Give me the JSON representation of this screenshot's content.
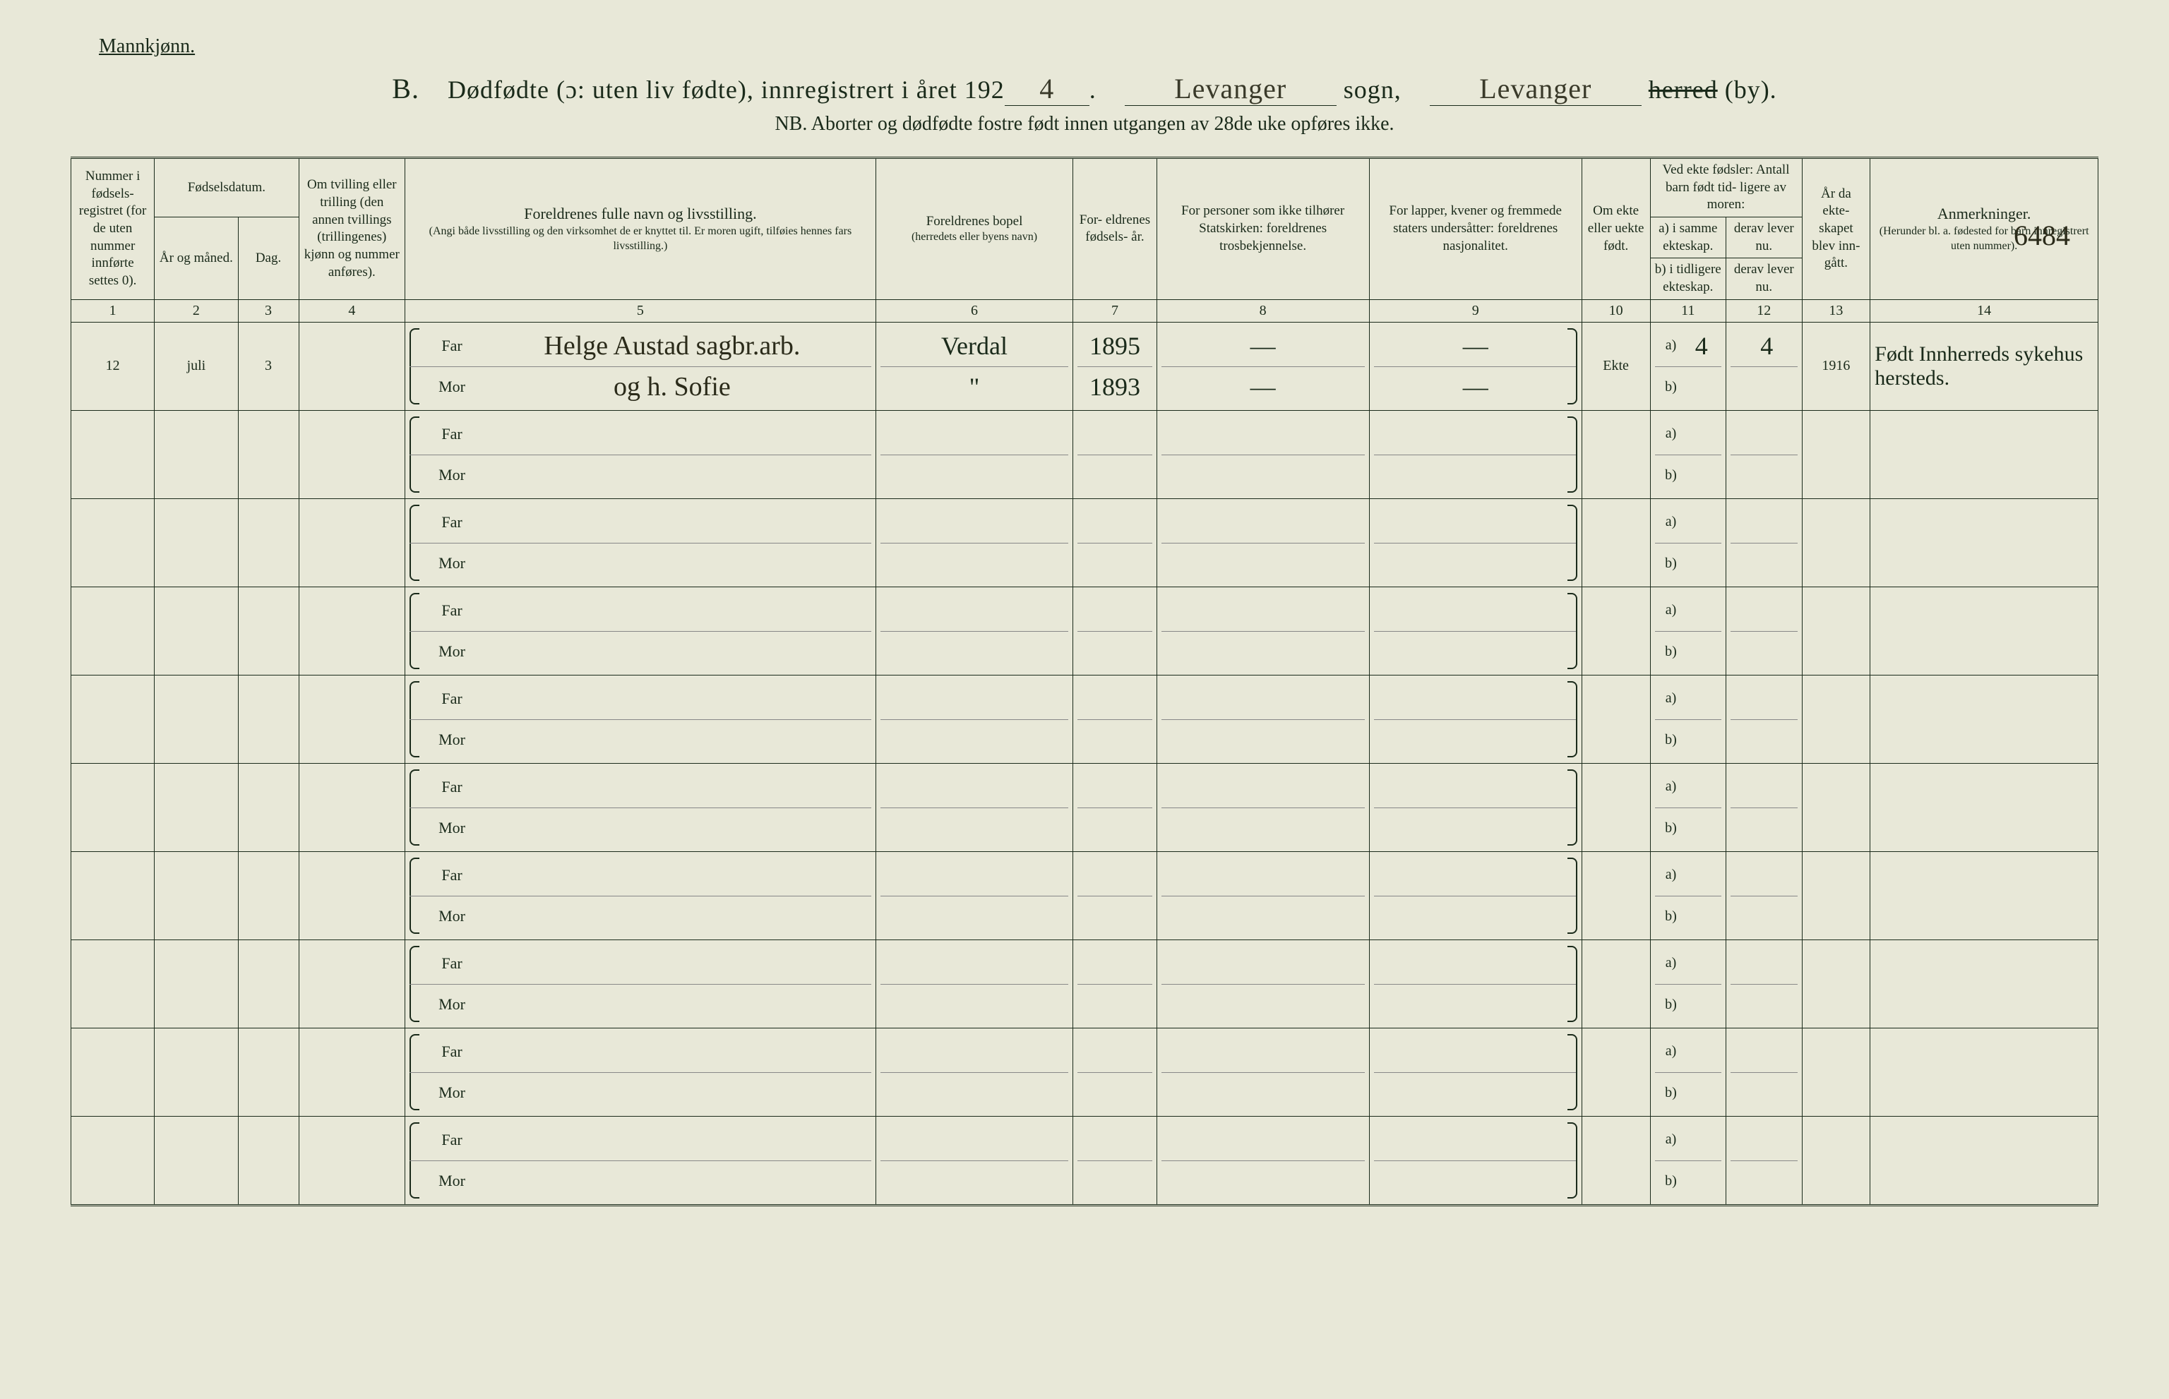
{
  "header": {
    "gender_label": "Mannkjønn.",
    "section_letter": "B.",
    "title_part1": "Dødfødte (ɔ: uten liv fødte), innregistrert i året 192",
    "year_digit": "4",
    "sogn_value": "Levanger",
    "sogn_label": "sogn,",
    "herred_value": "Levanger",
    "herred_label_strike": "herred",
    "herred_label_suffix": "(by).",
    "subtitle": "NB.  Aborter og dødfødte fostre født innen utgangen av 28de uke opføres ikke."
  },
  "corner_number": "6484",
  "columns": {
    "c1": "Nummer i fødsels- registret (for de uten nummer innførte settes 0).",
    "c2_group": "Fødselsdatum.",
    "c2": "År og måned.",
    "c3": "Dag.",
    "c4": "Om tvilling eller trilling (den annen tvillings (trillingenes) kjønn og nummer anføres).",
    "c5": "Foreldrenes fulle navn og livsstilling.",
    "c5_sub": "(Angi både livsstilling og den virksomhet de er knyttet til. Er moren ugift, tilføies hennes fars livsstilling.)",
    "c6": "Foreldrenes bopel",
    "c6_sub": "(herredets eller byens navn)",
    "c7": "For- eldrenes fødsels- år.",
    "c8": "For personer som ikke tilhører Statskirken: foreldrenes trosbekjennelse.",
    "c9": "For lapper, kvener og fremmede staters undersåtter: foreldrenes nasjonalitet.",
    "c10": "Om ekte eller uekte født.",
    "c11_12_top": "Ved ekte fødsler: Antall barn født tid- ligere av moren:",
    "c11": "a) i samme ekteskap.",
    "c11b": "b) i tidligere ekteskap.",
    "c12": "derav lever nu.",
    "c12b": "derav lever nu.",
    "c13": "År da ekte- skapet blev inn- gått.",
    "c14": "Anmerkninger.",
    "c14_sub": "(Herunder bl. a. fødested for barn innregistrert uten nummer).",
    "far_label": "Far",
    "mor_label": "Mor",
    "a_label": "a)",
    "b_label": "b)"
  },
  "colnums": [
    "1",
    "2",
    "3",
    "4",
    "5",
    "6",
    "7",
    "8",
    "9",
    "10",
    "11",
    "12",
    "13",
    "14"
  ],
  "rows": [
    {
      "num": "12",
      "month": "juli",
      "day": "3",
      "twin": "",
      "far_name": "Helge Austad sagbr.arb.",
      "mor_name": "og h. Sofie",
      "far_bopel": "Verdal",
      "mor_bopel": "\"",
      "far_year": "1895",
      "mor_year": "1893",
      "far_rel": "—",
      "mor_rel": "—",
      "far_nat": "—",
      "mor_nat": "—",
      "ekte": "Ekte",
      "a_val": "4",
      "b_val": "",
      "a_lev": "4",
      "b_lev": "",
      "marriage_year": "1916",
      "remarks": "Født Innherreds sykehus hersteds."
    },
    {},
    {},
    {},
    {},
    {},
    {},
    {},
    {},
    {}
  ]
}
